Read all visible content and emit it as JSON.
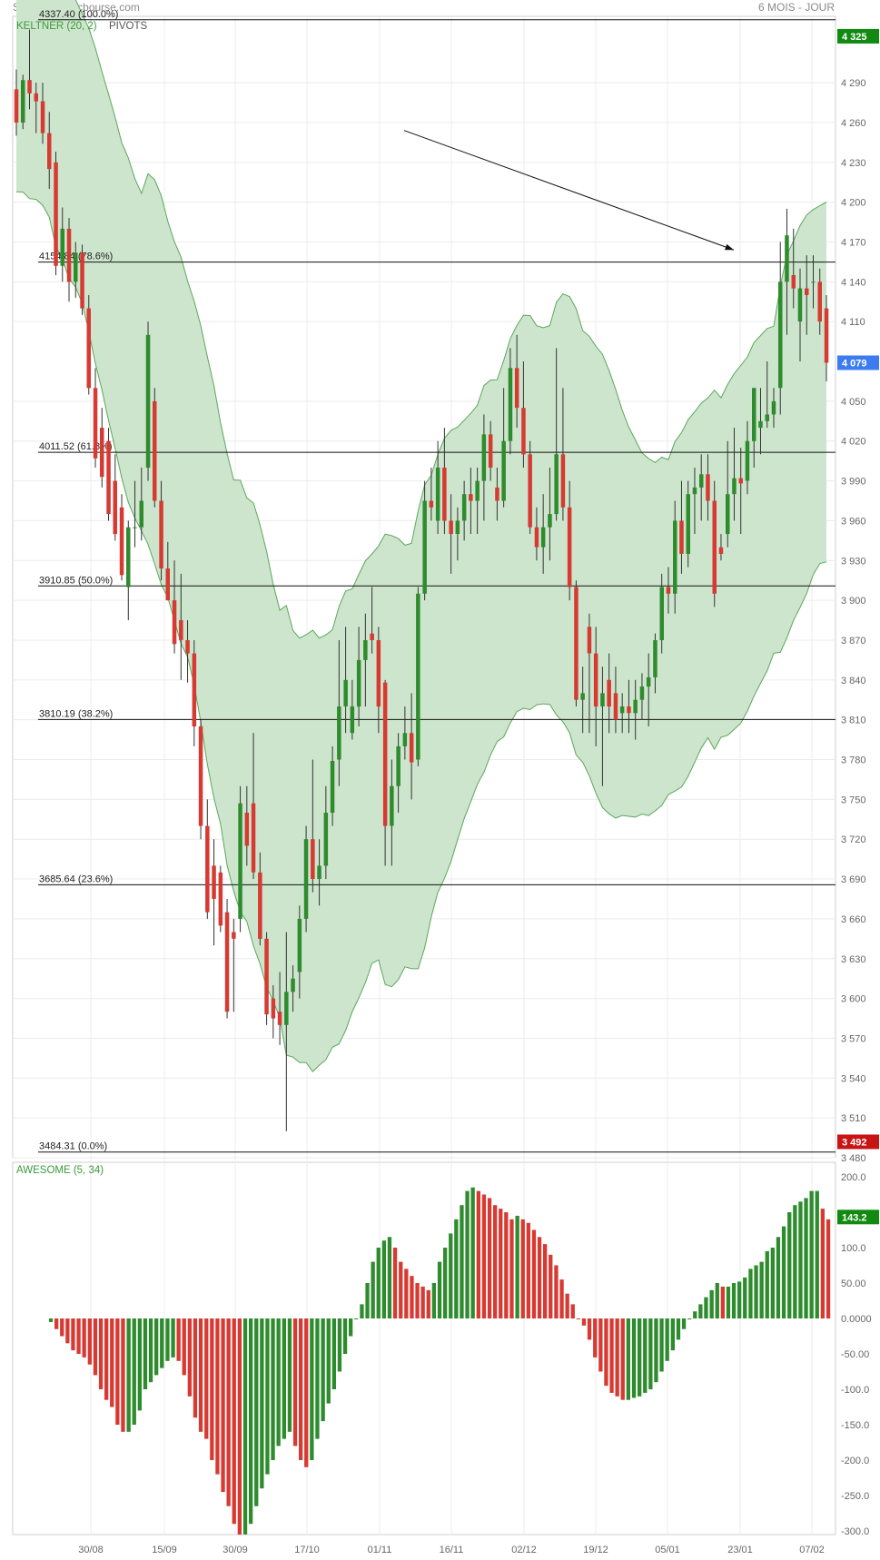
{
  "header": {
    "title": "S&P 500 - abcbourse.com",
    "period": "6 MOIS - JOUR"
  },
  "colors": {
    "up": "#2e8b2e",
    "down": "#d63a32",
    "band_fill": "#cde5cc",
    "band_line": "#5aa85a",
    "badge_green": "#128a12",
    "badge_blue": "#3d7cf0",
    "badge_red": "#c81414"
  },
  "chart_data": [
    {
      "type": "candlestick",
      "title": "KELTNER (20, 2)",
      "subtitle": "PIVOTS",
      "ylim": [
        3480,
        4340
      ],
      "y_ticks": [
        {
          "v": 4290,
          "label": "4 290"
        },
        {
          "v": 4260,
          "label": "4 260"
        },
        {
          "v": 4230,
          "label": "4 230"
        },
        {
          "v": 4200,
          "label": "4 200"
        },
        {
          "v": 4170,
          "label": "4 170"
        },
        {
          "v": 4140,
          "label": "4 140"
        },
        {
          "v": 4110,
          "label": "4 110"
        },
        {
          "v": 4050,
          "label": "4 050"
        },
        {
          "v": 4020,
          "label": "4 020"
        },
        {
          "v": 3990,
          "label": "3 990"
        },
        {
          "v": 3960,
          "label": "3 960"
        },
        {
          "v": 3930,
          "label": "3 930"
        },
        {
          "v": 3900,
          "label": "3 900"
        },
        {
          "v": 3870,
          "label": "3 870"
        },
        {
          "v": 3840,
          "label": "3 840"
        },
        {
          "v": 3810,
          "label": "3 810"
        },
        {
          "v": 3780,
          "label": "3 780"
        },
        {
          "v": 3750,
          "label": "3 750"
        },
        {
          "v": 3720,
          "label": "3 720"
        },
        {
          "v": 3690,
          "label": "3 690"
        },
        {
          "v": 3660,
          "label": "3 660"
        },
        {
          "v": 3630,
          "label": "3 630"
        },
        {
          "v": 3600,
          "label": "3 600"
        },
        {
          "v": 3570,
          "label": "3 570"
        },
        {
          "v": 3540,
          "label": "3 540"
        },
        {
          "v": 3510,
          "label": "3 510"
        },
        {
          "v": 3480,
          "label": "3 480"
        }
      ],
      "fib_levels": [
        {
          "value": 4337.4,
          "label": "4337.40  (100.0%)"
        },
        {
          "value": 4154.84,
          "label": "4154.84  (78.6%)"
        },
        {
          "value": 4011.52,
          "label": "4011.52  (61.8%)"
        },
        {
          "value": 3910.85,
          "label": "3910.85  (50.0%)"
        },
        {
          "value": 3810.19,
          "label": "3810.19  (38.2%)"
        },
        {
          "value": 3685.64,
          "label": "3685.64  (23.6%)"
        },
        {
          "value": 3484.31,
          "label": "3484.31  (0.0%)"
        }
      ],
      "badges": [
        {
          "value": 4325,
          "label": "4 325",
          "color": "green"
        },
        {
          "value": 4079,
          "label": "4 079",
          "color": "blue"
        },
        {
          "value": 3492,
          "label": "3 492",
          "color": "red"
        }
      ],
      "arrow": {
        "from": [
          17.8,
          4254
        ],
        "to": [
          26.3,
          4164
        ]
      },
      "candles": [
        [
          4285,
          4300,
          4250,
          4260
        ],
        [
          4260,
          4296,
          4255,
          4292
        ],
        [
          4292,
          4330,
          4270,
          4282
        ],
        [
          4282,
          4290,
          4252,
          4276
        ],
        [
          4276,
          4290,
          4244,
          4252
        ],
        [
          4252,
          4268,
          4210,
          4225
        ],
        [
          4230,
          4238,
          4145,
          4152
        ],
        [
          4152,
          4196,
          4140,
          4180
        ],
        [
          4180,
          4188,
          4125,
          4140
        ],
        [
          4140,
          4170,
          4128,
          4162
        ],
        [
          4162,
          4168,
          4115,
          4120
        ],
        [
          4120,
          4130,
          4055,
          4060
        ],
        [
          4060,
          4075,
          4000,
          4007
        ],
        [
          4030,
          4045,
          3985,
          3993
        ],
        [
          4020,
          4030,
          3960,
          3965
        ],
        [
          3990,
          4010,
          3945,
          3950
        ],
        [
          3970,
          3980,
          3915,
          3919
        ],
        [
          3910,
          3960,
          3885,
          3955
        ],
        [
          3955,
          3990,
          3940,
          3955
        ],
        [
          3955,
          4000,
          3945,
          3975
        ],
        [
          4000,
          4110,
          3990,
          4100
        ],
        [
          4050,
          4060,
          3970,
          3975
        ],
        [
          3975,
          3990,
          3915,
          3924
        ],
        [
          3924,
          3944,
          3900,
          3900
        ],
        [
          3900,
          3930,
          3860,
          3867
        ],
        [
          3885,
          3920,
          3840,
          3870
        ],
        [
          3870,
          3885,
          3838,
          3860
        ],
        [
          3860,
          3870,
          3790,
          3805
        ],
        [
          3805,
          3810,
          3720,
          3730
        ],
        [
          3730,
          3750,
          3660,
          3665
        ],
        [
          3700,
          3720,
          3640,
          3675
        ],
        [
          3695,
          3700,
          3650,
          3655
        ],
        [
          3665,
          3675,
          3585,
          3590
        ],
        [
          3650,
          3660,
          3590,
          3645
        ],
        [
          3660,
          3760,
          3650,
          3747
        ],
        [
          3740,
          3760,
          3700,
          3715
        ],
        [
          3747,
          3800,
          3690,
          3695
        ],
        [
          3695,
          3710,
          3640,
          3645
        ],
        [
          3645,
          3650,
          3580,
          3588
        ],
        [
          3600,
          3610,
          3570,
          3585
        ],
        [
          3590,
          3620,
          3565,
          3580
        ],
        [
          3580,
          3650,
          3500,
          3605
        ],
        [
          3605,
          3625,
          3590,
          3615
        ],
        [
          3620,
          3670,
          3600,
          3660
        ],
        [
          3660,
          3730,
          3650,
          3720
        ],
        [
          3720,
          3780,
          3680,
          3690
        ],
        [
          3690,
          3720,
          3670,
          3700
        ],
        [
          3700,
          3760,
          3690,
          3740
        ],
        [
          3740,
          3790,
          3730,
          3779
        ],
        [
          3780,
          3870,
          3760,
          3820
        ],
        [
          3820,
          3880,
          3800,
          3840
        ],
        [
          3800,
          3840,
          3795,
          3820
        ],
        [
          3820,
          3880,
          3805,
          3855
        ],
        [
          3855,
          3890,
          3820,
          3870
        ],
        [
          3875,
          3910,
          3860,
          3870
        ],
        [
          3870,
          3880,
          3800,
          3820
        ],
        [
          3838,
          3840,
          3700,
          3730
        ],
        [
          3730,
          3780,
          3700,
          3760
        ],
        [
          3760,
          3800,
          3740,
          3790
        ],
        [
          3790,
          3820,
          3780,
          3800
        ],
        [
          3800,
          3830,
          3750,
          3778
        ],
        [
          3780,
          3910,
          3775,
          3905
        ],
        [
          3905,
          3990,
          3900,
          3975
        ],
        [
          3975,
          4000,
          3960,
          3970
        ],
        [
          3960,
          4020,
          3950,
          4000
        ],
        [
          4000,
          4030,
          3950,
          3960
        ],
        [
          3960,
          3980,
          3920,
          3950
        ],
        [
          3950,
          3970,
          3930,
          3960
        ],
        [
          3960,
          3990,
          3945,
          3980
        ],
        [
          3980,
          4000,
          3950,
          3975
        ],
        [
          3975,
          4000,
          3950,
          3990
        ],
        [
          3990,
          4040,
          3960,
          4025
        ],
        [
          4025,
          4035,
          3990,
          4000
        ],
        [
          3985,
          4000,
          3960,
          3975
        ],
        [
          3975,
          4060,
          3970,
          4020
        ],
        [
          4020,
          4090,
          4010,
          4075
        ],
        [
          4075,
          4100,
          4030,
          4045
        ],
        [
          4045,
          4080,
          4000,
          4010
        ],
        [
          4010,
          4020,
          3950,
          3955
        ],
        [
          3955,
          3970,
          3930,
          3940
        ],
        [
          3940,
          3980,
          3920,
          3955
        ],
        [
          3955,
          4000,
          3930,
          3965
        ],
        [
          3965,
          4090,
          3960,
          4010
        ],
        [
          4010,
          4060,
          3960,
          3970
        ],
        [
          3970,
          3990,
          3900,
          3910
        ],
        [
          3910,
          3915,
          3820,
          3825
        ],
        [
          3825,
          3850,
          3800,
          3830
        ],
        [
          3880,
          3890,
          3800,
          3860
        ],
        [
          3860,
          3880,
          3790,
          3820
        ],
        [
          3820,
          3850,
          3760,
          3830
        ],
        [
          3840,
          3860,
          3800,
          3820
        ],
        [
          3830,
          3850,
          3800,
          3810
        ],
        [
          3815,
          3830,
          3800,
          3820
        ],
        [
          3820,
          3840,
          3800,
          3815
        ],
        [
          3815,
          3840,
          3795,
          3825
        ],
        [
          3825,
          3845,
          3810,
          3835
        ],
        [
          3835,
          3860,
          3805,
          3842
        ],
        [
          3842,
          3875,
          3830,
          3870
        ],
        [
          3870,
          3920,
          3860,
          3910
        ],
        [
          3910,
          3925,
          3890,
          3905
        ],
        [
          3905,
          3975,
          3890,
          3960
        ],
        [
          3960,
          3990,
          3920,
          3935
        ],
        [
          3935,
          3990,
          3925,
          3980
        ],
        [
          3980,
          4000,
          3950,
          3985
        ],
        [
          3985,
          4010,
          3960,
          3995
        ],
        [
          3995,
          4010,
          3960,
          3975
        ],
        [
          3975,
          3990,
          3895,
          3905
        ],
        [
          3940,
          3950,
          3930,
          3935
        ],
        [
          3950,
          4020,
          3940,
          3980
        ],
        [
          3980,
          4030,
          3960,
          3992
        ],
        [
          3992,
          4015,
          3950,
          3988
        ],
        [
          3990,
          4035,
          3980,
          4020
        ],
        [
          4020,
          4060,
          4000,
          4060
        ],
        [
          4030,
          4060,
          4010,
          4035
        ],
        [
          4035,
          4080,
          4030,
          4040
        ],
        [
          4040,
          4060,
          4030,
          4050
        ],
        [
          4060,
          4170,
          4040,
          4140
        ],
        [
          4140,
          4195,
          4100,
          4175
        ],
        [
          4145,
          4180,
          4120,
          4135
        ],
        [
          4110,
          4150,
          4080,
          4135
        ],
        [
          4135,
          4160,
          4100,
          4130
        ],
        [
          4140,
          4160,
          4120,
          4140
        ],
        [
          4140,
          4150,
          4100,
          4110
        ],
        [
          4120,
          4130,
          4065,
          4079
        ]
      ]
    },
    {
      "type": "bar",
      "title": "AWESOME (5, 34)",
      "ylim": [
        -300,
        200
      ],
      "y_ticks": [
        {
          "v": 200,
          "label": "200.0"
        },
        {
          "v": 100,
          "label": "100.0"
        },
        {
          "v": 50,
          "label": "50.00"
        },
        {
          "v": 0,
          "label": "0.0000"
        },
        {
          "v": -50,
          "label": "-50.00"
        },
        {
          "v": -100,
          "label": "-100.0"
        },
        {
          "v": -150,
          "label": "-150.0"
        },
        {
          "v": -200,
          "label": "-200.0"
        },
        {
          "v": -250,
          "label": "-250.0"
        },
        {
          "v": -300,
          "label": "-300.0"
        }
      ],
      "badge": {
        "value": 143.2,
        "label": "143.2",
        "color": "green"
      },
      "values": [
        -5,
        -15,
        -25,
        -35,
        -45,
        -50,
        -55,
        -65,
        -80,
        -100,
        -115,
        -125,
        -150,
        -160,
        -160,
        -150,
        -130,
        -100,
        -90,
        -80,
        -70,
        -60,
        -55,
        -60,
        -80,
        -110,
        -140,
        -160,
        -170,
        -200,
        -220,
        -245,
        -265,
        -290,
        -305,
        -305,
        -290,
        -265,
        -240,
        -220,
        -200,
        -180,
        -170,
        -160,
        -180,
        -200,
        -210,
        -200,
        -170,
        -145,
        -120,
        -100,
        -75,
        -50,
        -25,
        0,
        20,
        50,
        80,
        100,
        110,
        115,
        100,
        80,
        70,
        60,
        50,
        45,
        40,
        50,
        80,
        100,
        120,
        140,
        160,
        180,
        185,
        180,
        175,
        170,
        160,
        155,
        150,
        140,
        145,
        140,
        135,
        125,
        115,
        105,
        90,
        75,
        55,
        35,
        20,
        0,
        -10,
        -30,
        -55,
        -75,
        -95,
        -105,
        -110,
        -115,
        -115,
        -112,
        -110,
        -105,
        -100,
        -90,
        -75,
        -60,
        -45,
        -30,
        -15,
        0,
        10,
        20,
        30,
        40,
        50,
        45,
        45,
        50,
        52,
        58,
        70,
        75,
        80,
        95,
        100,
        115,
        130,
        150,
        160,
        165,
        170,
        180,
        180,
        155,
        140
      ],
      "colors": "GR"
    }
  ],
  "x_axis": {
    "ticks": [
      {
        "i": 4,
        "label": "30/08"
      },
      {
        "i": 14,
        "label": "15/09"
      },
      {
        "i": 24,
        "label": "30/09"
      },
      {
        "i": 34,
        "label": "17/10"
      },
      {
        "i": 44,
        "label": "01/11"
      },
      {
        "i": 54,
        "label": "16/11"
      },
      {
        "i": 64,
        "label": "02/12"
      },
      {
        "i": 74,
        "label": "19/12"
      },
      {
        "i": 84,
        "label": "05/01"
      },
      {
        "i": 94,
        "label": "23/01"
      },
      {
        "i": 104,
        "label": "07/02"
      }
    ]
  }
}
